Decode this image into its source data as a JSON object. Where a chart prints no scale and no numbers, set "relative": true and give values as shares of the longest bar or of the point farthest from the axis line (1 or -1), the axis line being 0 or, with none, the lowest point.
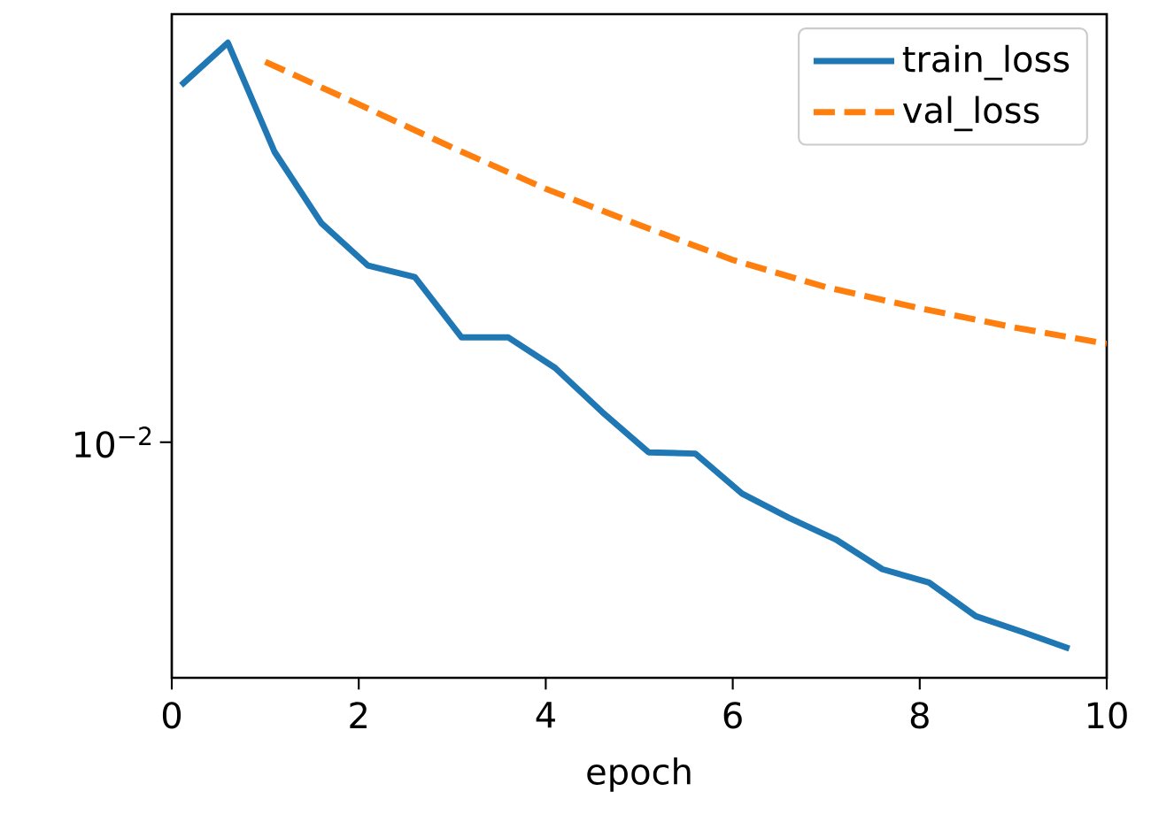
{
  "chart_data": {
    "type": "line",
    "xlabel": "epoch",
    "legend": "top right",
    "relative": true,
    "xlim": [
      0,
      10
    ],
    "xticks": [
      0,
      2,
      4,
      6,
      8,
      10
    ],
    "annotations": [
      "10$^{−2}$"
    ],
    "series": [
      {
        "name": "train_loss",
        "color": "#1f77b4",
        "line_style": "solid",
        "x": [
          0.1,
          0.6,
          1.1,
          1.6,
          2.1,
          2.6,
          3.1,
          3.6,
          4.1,
          4.6,
          5.1,
          5.6,
          6.1,
          6.6,
          7.1,
          7.6,
          8.1,
          8.6,
          9.1,
          9.6
        ],
        "values": [
          0.933,
          1,
          0.828,
          0.716,
          0.649,
          0.631,
          0.536,
          0.536,
          0.488,
          0.419,
          0.355,
          0.353,
          0.29,
          0.252,
          0.218,
          0.171,
          0.15,
          0.097,
          0.072,
          0.046
        ]
      },
      {
        "name": "val_loss",
        "color": "#ff7f0e",
        "line_style": "dashed",
        "x": [
          1,
          2,
          3,
          4,
          5,
          6,
          7,
          8,
          9,
          10
        ],
        "values": [
          0.97,
          0.903,
          0.835,
          0.77,
          0.713,
          0.658,
          0.615,
          0.582,
          0.552,
          0.526
        ]
      }
    ]
  }
}
